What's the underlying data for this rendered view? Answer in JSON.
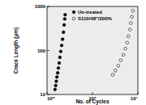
{
  "chart_data": {
    "type": "scatter",
    "x_label": "No. of Cycles",
    "y_label": "Crack Length (μm)",
    "log": true,
    "grid": false,
    "legend": "upper center",
    "xlim": [
      100000,
      10000000
    ],
    "ylim": [
      10,
      1000
    ],
    "xticks": [
      {
        "value": 100000,
        "label": "10⁵"
      },
      {
        "value": 1000000,
        "label": "10⁶"
      },
      {
        "value": 10000000,
        "label": "10⁷"
      }
    ],
    "yticks": [
      10,
      100,
      1000
    ],
    "series": [
      {
        "name": "Un-treated",
        "color": "#000000",
        "marker": "filled-circle",
        "x": [
          150000,
          155000,
          160000,
          165000,
          172000,
          178000,
          185000,
          192000,
          200000,
          210000,
          220000,
          230000,
          238000,
          245000,
          250000
        ],
        "values": [
          13,
          16,
          20,
          25,
          31,
          40,
          52,
          70,
          95,
          130,
          180,
          260,
          380,
          520,
          650
        ]
      },
      {
        "name": "S110/48\"/200%",
        "color": "#000000",
        "marker": "open-circle",
        "x": [
          2800000,
          3200000,
          3700000,
          4200000,
          4800000,
          5300000,
          5800000,
          6200000,
          6700000,
          7000000,
          7400000,
          7800000
        ],
        "values": [
          28,
          35,
          45,
          60,
          80,
          110,
          150,
          210,
          300,
          420,
          580,
          800
        ]
      }
    ]
  }
}
